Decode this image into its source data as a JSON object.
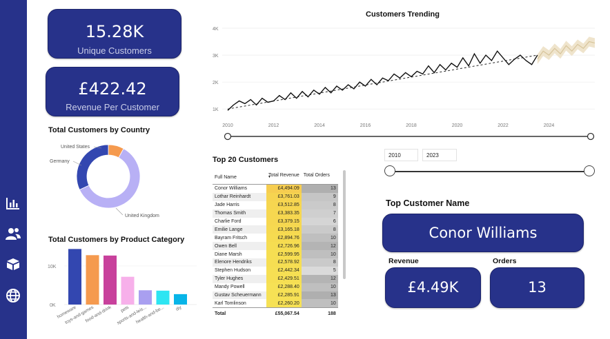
{
  "nav": {
    "icons": [
      "bar-chart-icon",
      "users-icon",
      "boxes-icon",
      "globe-icon"
    ]
  },
  "kpis": {
    "unique_customers": {
      "value": "15.28K",
      "label": "Unique Customers"
    },
    "revenue_per_customer": {
      "value": "£422.42",
      "label": "Revenue Per Customer"
    }
  },
  "country_chart": {
    "title": "Total Customers by Country",
    "chart_data": {
      "type": "pie",
      "categories": [
        "United Kingdom",
        "United States",
        "Germany"
      ],
      "values": [
        8130,
        1080,
        4320
      ],
      "colors": [
        "#b8b0f5",
        "#f59a4e",
        "#3347b0"
      ]
    }
  },
  "category_chart": {
    "title": "Total Customers by Product Category",
    "chart_data": {
      "type": "bar",
      "categories": [
        "homeware",
        "toys-and-games",
        "food-and-drink",
        "pets",
        "sports-and-leis...",
        "health-and-be...",
        "diy"
      ],
      "values": [
        14400,
        12800,
        12700,
        7200,
        3700,
        3600,
        2700
      ],
      "colors": [
        "#3347b0",
        "#f59a4e",
        "#c8419c",
        "#f7b0ea",
        "#a99ff0",
        "#2ee5f2",
        "#08b5e8"
      ],
      "yticks": [
        "0K",
        "10K"
      ],
      "ylim": [
        0,
        15000
      ]
    }
  },
  "trend_chart": {
    "title": "Customers Trending",
    "chart_data": {
      "type": "line",
      "x_ticks": [
        "2010",
        "2012",
        "2014",
        "2016",
        "2018",
        "2020",
        "2022",
        "2024"
      ],
      "y_ticks": [
        "1K",
        "2K",
        "3K",
        "4K"
      ],
      "ylim": [
        750,
        4100
      ],
      "actual": [
        [
          2010.0,
          950
        ],
        [
          2010.25,
          1150
        ],
        [
          2010.5,
          1300
        ],
        [
          2010.75,
          1200
        ],
        [
          2011.0,
          1350
        ],
        [
          2011.25,
          1150
        ],
        [
          2011.5,
          1400
        ],
        [
          2011.75,
          1250
        ],
        [
          2012.0,
          1300
        ],
        [
          2012.25,
          1500
        ],
        [
          2012.5,
          1350
        ],
        [
          2012.75,
          1600
        ],
        [
          2013.0,
          1400
        ],
        [
          2013.25,
          1650
        ],
        [
          2013.5,
          1450
        ],
        [
          2013.75,
          1700
        ],
        [
          2014.0,
          1550
        ],
        [
          2014.25,
          1800
        ],
        [
          2014.5,
          1600
        ],
        [
          2014.75,
          1850
        ],
        [
          2015.0,
          1700
        ],
        [
          2015.25,
          1900
        ],
        [
          2015.5,
          1750
        ],
        [
          2015.75,
          2000
        ],
        [
          2016.0,
          1850
        ],
        [
          2016.25,
          2100
        ],
        [
          2016.5,
          1900
        ],
        [
          2016.75,
          2150
        ],
        [
          2017.0,
          2050
        ],
        [
          2017.25,
          2300
        ],
        [
          2017.5,
          2150
        ],
        [
          2017.75,
          2350
        ],
        [
          2018.0,
          2200
        ],
        [
          2018.25,
          2400
        ],
        [
          2018.5,
          2300
        ],
        [
          2018.75,
          2600
        ],
        [
          2019.0,
          2350
        ],
        [
          2019.25,
          2650
        ],
        [
          2019.5,
          2450
        ],
        [
          2019.75,
          2700
        ],
        [
          2020.0,
          2550
        ],
        [
          2020.25,
          2900
        ],
        [
          2020.5,
          2600
        ],
        [
          2020.75,
          3050
        ],
        [
          2021.0,
          2700
        ],
        [
          2021.25,
          3000
        ],
        [
          2021.5,
          2800
        ],
        [
          2021.75,
          3150
        ],
        [
          2022.0,
          2900
        ],
        [
          2022.25,
          2650
        ],
        [
          2022.5,
          2850
        ],
        [
          2022.75,
          3000
        ],
        [
          2023.0,
          2800
        ],
        [
          2023.25,
          2650
        ],
        [
          2023.5,
          3000
        ]
      ],
      "trend": [
        [
          2010.0,
          1000
        ],
        [
          2023.5,
          3000
        ]
      ],
      "forecast": [
        [
          2023.5,
          2850
        ],
        [
          2023.75,
          3150
        ],
        [
          2024.0,
          3000
        ],
        [
          2024.25,
          3250
        ],
        [
          2024.5,
          3050
        ],
        [
          2024.75,
          3350
        ],
        [
          2025.0,
          3150
        ],
        [
          2025.25,
          3400
        ],
        [
          2025.5,
          3250
        ],
        [
          2025.75,
          3500
        ],
        [
          2026.0,
          3450
        ]
      ],
      "forecast_band": 180,
      "xlim": [
        2010,
        2026
      ]
    }
  },
  "table": {
    "title": "Top 20 Customers",
    "headers": [
      "Full Name",
      "Total Revenue",
      "Total Orders"
    ],
    "rows": [
      [
        "Conor Williams",
        "£4,494.09",
        "13"
      ],
      [
        "Lothar Reinhardt",
        "£3,761.03",
        "9"
      ],
      [
        "Jade Harris",
        "£3,512.85",
        "8"
      ],
      [
        "Thomas Smith",
        "£3,383.35",
        "7"
      ],
      [
        "Charlie Ford",
        "£3,379.15",
        "6"
      ],
      [
        "Emilie Lange",
        "£3,165.18",
        "8"
      ],
      [
        "Bayram Fritsch",
        "£2,894.76",
        "10"
      ],
      [
        "Owen Bell",
        "£2,726.96",
        "12"
      ],
      [
        "Diane Marsh",
        "£2,599.95",
        "10"
      ],
      [
        "Elenore Hendriks",
        "£2,578.92",
        "8"
      ],
      [
        "Stephen Hudson",
        "£2,442.34",
        "5"
      ],
      [
        "Tyler Hughes",
        "£2,429.51",
        "12"
      ],
      [
        "Mandy Powell",
        "£2,288.40",
        "10"
      ],
      [
        "Gustav Scheuermann",
        "£2,285.91",
        "13"
      ],
      [
        "Karl Tomlinson",
        "£2,260.20",
        "10"
      ]
    ],
    "total": [
      "Total",
      "£55,067.54",
      "188"
    ],
    "sort_indicator": "▼"
  },
  "slicer": {
    "start": "2010",
    "end": "2023"
  },
  "top_customer": {
    "title": "Top Customer Name",
    "name": "Conor Williams",
    "revenue_label": "Revenue",
    "revenue_value": "£4.49K",
    "orders_label": "Orders",
    "orders_value": "13"
  },
  "colors": {
    "navy": "#27328a",
    "revenue_bar": "#f6c453",
    "orders_bar": "#bdbdbd"
  }
}
